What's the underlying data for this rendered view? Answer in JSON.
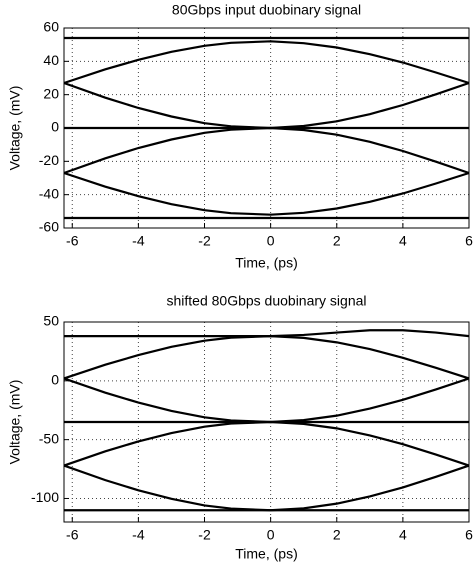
{
  "chart_data": [
    {
      "type": "line",
      "title": "80Gbps input duobinary signal",
      "xlabel": "Time, (ps)",
      "ylabel": "Voltage, (mV)",
      "xlim": [
        -6.25,
        6
      ],
      "xticks": [
        -6,
        -4,
        -2,
        0,
        2,
        4,
        6
      ],
      "ylim": [
        -60,
        60
      ],
      "yticks": [
        -60,
        -40,
        -20,
        0,
        20,
        40,
        60
      ],
      "grid": true,
      "x": [
        -6.25,
        -5,
        -4,
        -3,
        -2,
        -1.2,
        0,
        1,
        2,
        3,
        4,
        5,
        6
      ],
      "series": [
        {
          "color": "#000000",
          "values": [
            54,
            54,
            54,
            54,
            54,
            54,
            54,
            54,
            54,
            54,
            54,
            54,
            54
          ]
        },
        {
          "color": "#000000",
          "values": [
            27,
            35.2,
            40.9,
            45.7,
            49.3,
            51.1,
            52,
            50.9,
            48.3,
            44.3,
            39.3,
            33.3,
            27
          ]
        },
        {
          "color": "#000000",
          "values": [
            27,
            18.2,
            12,
            6.9,
            2.9,
            1,
            0,
            1.2,
            4,
            8.3,
            13.8,
            20.2,
            27
          ]
        },
        {
          "color": "#000000",
          "values": [
            0,
            0,
            0,
            0,
            0,
            0,
            0,
            0,
            0,
            0,
            0,
            0,
            0
          ]
        },
        {
          "color": "#000000",
          "values": [
            -27,
            -18.2,
            -12,
            -6.9,
            -2.9,
            -1,
            0,
            -1.2,
            -4,
            -8.3,
            -13.8,
            -20.2,
            -27
          ]
        },
        {
          "color": "#000000",
          "values": [
            -27,
            -35.2,
            -40.9,
            -45.7,
            -49.3,
            -51.1,
            -52,
            -50.9,
            -48.3,
            -44.3,
            -39.3,
            -33.3,
            -27
          ]
        },
        {
          "color": "#000000",
          "values": [
            -54,
            -54,
            -54,
            -54,
            -54,
            -54,
            -54,
            -54,
            -54,
            -54,
            -54,
            -54,
            -54
          ]
        }
      ]
    },
    {
      "type": "line",
      "title": "shifted 80Gbps duobinary signal",
      "xlabel": "Time, (ps)",
      "ylabel": "Voltage, (mV)",
      "xlim": [
        -6.25,
        6
      ],
      "xticks": [
        -6,
        -4,
        -2,
        0,
        2,
        4,
        6
      ],
      "ylim": [
        -120,
        50
      ],
      "yticks": [
        -100,
        -50,
        0,
        50
      ],
      "grid": true,
      "x": [
        -6.25,
        -5,
        -4,
        -3,
        -2,
        -1.2,
        0,
        1,
        2,
        3,
        4,
        5,
        6
      ],
      "series": [
        {
          "color": "#000000",
          "values": [
            38,
            38,
            38,
            38,
            38,
            38,
            38,
            39,
            41,
            43,
            43,
            41,
            38
          ]
        },
        {
          "color": "#000000",
          "values": [
            2,
            13.7,
            21.9,
            28.9,
            34.1,
            36.7,
            38,
            36.5,
            32.7,
            27,
            19.6,
            11.1,
            2
          ]
        },
        {
          "color": "#000000",
          "values": [
            2,
            -10.1,
            -18.5,
            -25.6,
            -31,
            -33.7,
            -35,
            -33.4,
            -29.6,
            -23.6,
            -16.1,
            -7.3,
            2
          ]
        },
        {
          "color": "#000000",
          "values": [
            -35,
            -35,
            -35,
            -35,
            -35,
            -35,
            -35,
            -35,
            -35,
            -35,
            -35,
            -35,
            -35
          ]
        },
        {
          "color": "#000000",
          "values": [
            -72,
            -59.9,
            -51.5,
            -44.4,
            -39,
            -36.3,
            -35,
            -36.6,
            -40.4,
            -46.4,
            -53.9,
            -62.7,
            -72
          ]
        },
        {
          "color": "#000000",
          "values": [
            -72,
            -84.4,
            -93.1,
            -100.3,
            -105.9,
            -108.6,
            -110,
            -108.4,
            -104.4,
            -98.3,
            -90.6,
            -81.6,
            -72
          ]
        },
        {
          "color": "#000000",
          "values": [
            -110,
            -110,
            -110,
            -110,
            -110,
            -110,
            -110,
            -110,
            -110,
            -110,
            -110,
            -110,
            -110
          ]
        }
      ]
    }
  ]
}
